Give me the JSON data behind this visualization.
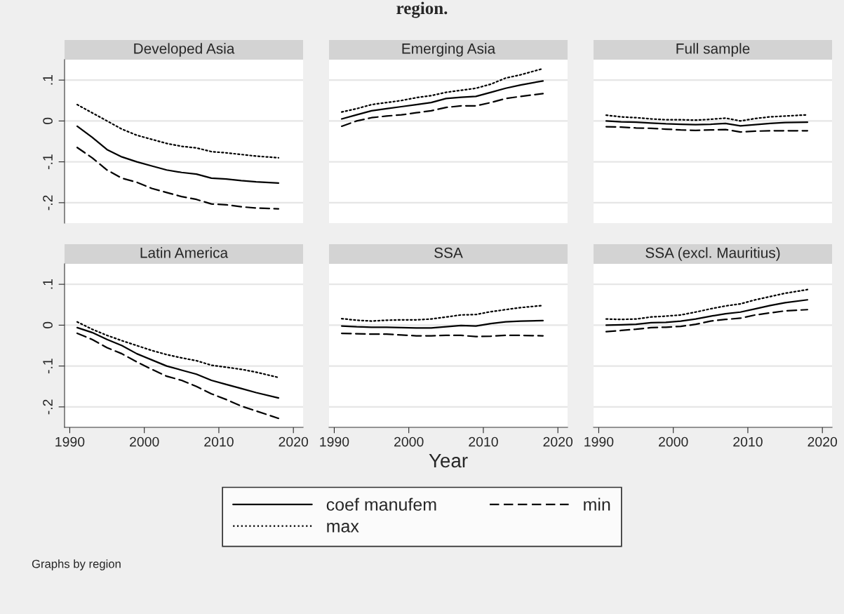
{
  "chart_data": [
    {
      "type": "line",
      "title": "Developed Asia",
      "x": [
        1991,
        1993,
        1995,
        1997,
        1999,
        2001,
        2003,
        2005,
        2007,
        2009,
        2011,
        2013,
        2015,
        2018
      ],
      "xlim": [
        1989.3,
        2021.3
      ],
      "ylim": [
        -0.25,
        0.15
      ],
      "yticks": [
        {
          "value": 0.1,
          "label": ".1"
        },
        0,
        {
          "value": -0.1,
          "label": "-.1"
        },
        {
          "value": -0.2,
          "label": "-.2"
        }
      ],
      "tick_labels": "y",
      "grid": "y",
      "legend": "bottom",
      "annotations": [
        "region.",
        "Graphs by region"
      ],
      "series": [
        {
          "name": "coef manufem",
          "color": "#000000",
          "line_style": "solid",
          "values": [
            -0.013,
            -0.04,
            -0.07,
            -0.088,
            -0.1,
            -0.11,
            -0.12,
            -0.126,
            -0.13,
            -0.14,
            -0.142,
            -0.146,
            -0.149,
            -0.152
          ]
        },
        {
          "name": "min",
          "color": "#000000",
          "line_style": "dashed",
          "values": [
            -0.065,
            -0.09,
            -0.12,
            -0.14,
            -0.15,
            -0.165,
            -0.175,
            -0.185,
            -0.192,
            -0.203,
            -0.205,
            -0.21,
            -0.213,
            -0.215
          ]
        },
        {
          "name": "max",
          "color": "#000000",
          "line_style": "dotted",
          "values": [
            0.04,
            0.02,
            0.0,
            -0.02,
            -0.035,
            -0.045,
            -0.055,
            -0.062,
            -0.066,
            -0.075,
            -0.078,
            -0.082,
            -0.086,
            -0.09
          ]
        }
      ]
    },
    {
      "type": "line",
      "title": "Emerging Asia",
      "x": [
        1991,
        1993,
        1995,
        1997,
        1999,
        2001,
        2003,
        2005,
        2007,
        2009,
        2011,
        2013,
        2015,
        2018
      ],
      "xlim": [
        1989.3,
        2021.3
      ],
      "ylim": [
        -0.25,
        0.15
      ],
      "yticks": [
        {
          "value": 0.1,
          "label": null
        },
        {
          "value": 0,
          "label": null
        },
        {
          "value": -0.1,
          "label": null
        },
        {
          "value": -0.2,
          "label": null
        }
      ],
      "tick_labels": false,
      "grid": "y",
      "series": [
        {
          "color": "#000000",
          "line_style": "solid",
          "values": [
            0.005,
            0.015,
            0.025,
            0.03,
            0.035,
            0.04,
            0.045,
            0.055,
            0.058,
            0.06,
            0.07,
            0.08,
            0.088,
            0.098
          ]
        },
        {
          "color": "#000000",
          "line_style": "dashed",
          "values": [
            -0.013,
            0.0,
            0.008,
            0.012,
            0.015,
            0.02,
            0.025,
            0.033,
            0.037,
            0.037,
            0.045,
            0.055,
            0.06,
            0.067
          ]
        },
        {
          "color": "#000000",
          "line_style": "dotted",
          "values": [
            0.022,
            0.03,
            0.04,
            0.045,
            0.05,
            0.057,
            0.062,
            0.07,
            0.075,
            0.08,
            0.09,
            0.105,
            0.113,
            0.128
          ]
        }
      ]
    },
    {
      "type": "line",
      "title": "Full sample",
      "x": [
        1991,
        1993,
        1995,
        1997,
        1999,
        2001,
        2003,
        2005,
        2007,
        2009,
        2011,
        2013,
        2015,
        2018
      ],
      "xlim": [
        1989.3,
        2021.3
      ],
      "ylim": [
        -0.25,
        0.15
      ],
      "yticks": [
        {
          "value": 0.1,
          "label": null
        },
        {
          "value": 0,
          "label": null
        },
        {
          "value": -0.1,
          "label": null
        },
        {
          "value": -0.2,
          "label": null
        }
      ],
      "tick_labels": false,
      "grid": "y",
      "series": [
        {
          "color": "#000000",
          "line_style": "solid",
          "values": [
            0.0,
            -0.002,
            -0.003,
            -0.005,
            -0.007,
            -0.008,
            -0.009,
            -0.008,
            -0.006,
            -0.012,
            -0.009,
            -0.006,
            -0.004,
            -0.003
          ]
        },
        {
          "color": "#000000",
          "line_style": "dashed",
          "values": [
            -0.014,
            -0.015,
            -0.017,
            -0.018,
            -0.02,
            -0.022,
            -0.023,
            -0.022,
            -0.021,
            -0.027,
            -0.025,
            -0.024,
            -0.024,
            -0.024
          ]
        },
        {
          "color": "#000000",
          "line_style": "dotted",
          "values": [
            0.014,
            0.01,
            0.008,
            0.005,
            0.003,
            0.003,
            0.002,
            0.004,
            0.007,
            0.0,
            0.006,
            0.01,
            0.012,
            0.015
          ]
        }
      ]
    },
    {
      "type": "line",
      "title": "Latin America",
      "x": [
        1991,
        1993,
        1995,
        1997,
        1999,
        2001,
        2003,
        2005,
        2007,
        2009,
        2011,
        2013,
        2015,
        2018
      ],
      "xlim": [
        1989.3,
        2021.3
      ],
      "ylim": [
        -0.25,
        0.15
      ],
      "xticks": [
        1990,
        2000,
        2010,
        2020
      ],
      "yticks": [
        {
          "value": 0.1,
          "label": ".1"
        },
        0,
        {
          "value": -0.1,
          "label": "-.1"
        },
        {
          "value": -0.2,
          "label": "-.2"
        }
      ],
      "grid": "y",
      "series": [
        {
          "color": "#000000",
          "line_style": "solid",
          "values": [
            -0.006,
            -0.018,
            -0.035,
            -0.05,
            -0.07,
            -0.085,
            -0.1,
            -0.11,
            -0.12,
            -0.135,
            -0.145,
            -0.155,
            -0.165,
            -0.178
          ]
        },
        {
          "color": "#000000",
          "line_style": "dashed",
          "values": [
            -0.02,
            -0.035,
            -0.055,
            -0.07,
            -0.09,
            -0.108,
            -0.125,
            -0.135,
            -0.15,
            -0.168,
            -0.182,
            -0.198,
            -0.21,
            -0.228
          ]
        },
        {
          "color": "#000000",
          "line_style": "dotted",
          "values": [
            0.008,
            -0.01,
            -0.025,
            -0.038,
            -0.05,
            -0.062,
            -0.072,
            -0.08,
            -0.087,
            -0.098,
            -0.103,
            -0.108,
            -0.115,
            -0.128
          ]
        }
      ]
    },
    {
      "type": "line",
      "title": "SSA",
      "xlabel": "Year",
      "x": [
        1991,
        1993,
        1995,
        1997,
        1999,
        2001,
        2003,
        2005,
        2007,
        2009,
        2011,
        2013,
        2015,
        2018
      ],
      "xlim": [
        1989.3,
        2021.3
      ],
      "ylim": [
        -0.25,
        0.15
      ],
      "xticks": [
        1990,
        2000,
        2010,
        2020
      ],
      "yticks": [
        {
          "value": 0.1,
          "label": null
        },
        {
          "value": 0,
          "label": null
        },
        {
          "value": -0.1,
          "label": null
        },
        {
          "value": -0.2,
          "label": null
        }
      ],
      "tick_labels": "x",
      "grid": "y",
      "series": [
        {
          "color": "#000000",
          "line_style": "solid",
          "values": [
            -0.002,
            -0.004,
            -0.005,
            -0.005,
            -0.006,
            -0.007,
            -0.007,
            -0.004,
            -0.001,
            -0.002,
            0.004,
            0.008,
            0.01,
            0.011
          ]
        },
        {
          "color": "#000000",
          "line_style": "dashed",
          "values": [
            -0.02,
            -0.021,
            -0.022,
            -0.022,
            -0.024,
            -0.026,
            -0.026,
            -0.025,
            -0.025,
            -0.028,
            -0.027,
            -0.025,
            -0.025,
            -0.026
          ]
        },
        {
          "color": "#000000",
          "line_style": "dotted",
          "values": [
            0.016,
            0.012,
            0.01,
            0.012,
            0.013,
            0.013,
            0.015,
            0.02,
            0.025,
            0.026,
            0.033,
            0.038,
            0.043,
            0.048
          ]
        }
      ]
    },
    {
      "type": "line",
      "title": "SSA (excl. Mauritius)",
      "x": [
        1991,
        1993,
        1995,
        1997,
        1999,
        2001,
        2003,
        2005,
        2007,
        2009,
        2011,
        2013,
        2015,
        2018
      ],
      "xlim": [
        1989.3,
        2021.3
      ],
      "ylim": [
        -0.25,
        0.15
      ],
      "xticks": [
        1990,
        2000,
        2010,
        2020
      ],
      "yticks": [
        {
          "value": 0.1,
          "label": null
        },
        {
          "value": 0,
          "label": null
        },
        {
          "value": -0.1,
          "label": null
        },
        {
          "value": -0.2,
          "label": null
        }
      ],
      "tick_labels": "x",
      "grid": "y",
      "series": [
        {
          "color": "#000000",
          "line_style": "solid",
          "values": [
            0.0,
            0.001,
            0.002,
            0.006,
            0.007,
            0.01,
            0.015,
            0.022,
            0.028,
            0.032,
            0.04,
            0.048,
            0.055,
            0.062
          ]
        },
        {
          "color": "#000000",
          "line_style": "dashed",
          "values": [
            -0.016,
            -0.013,
            -0.01,
            -0.006,
            -0.005,
            -0.003,
            0.002,
            0.01,
            0.014,
            0.017,
            0.025,
            0.03,
            0.035,
            0.038
          ]
        },
        {
          "color": "#000000",
          "line_style": "dotted",
          "values": [
            0.015,
            0.014,
            0.015,
            0.02,
            0.022,
            0.025,
            0.032,
            0.04,
            0.047,
            0.052,
            0.062,
            0.07,
            0.078,
            0.087
          ]
        }
      ]
    }
  ]
}
